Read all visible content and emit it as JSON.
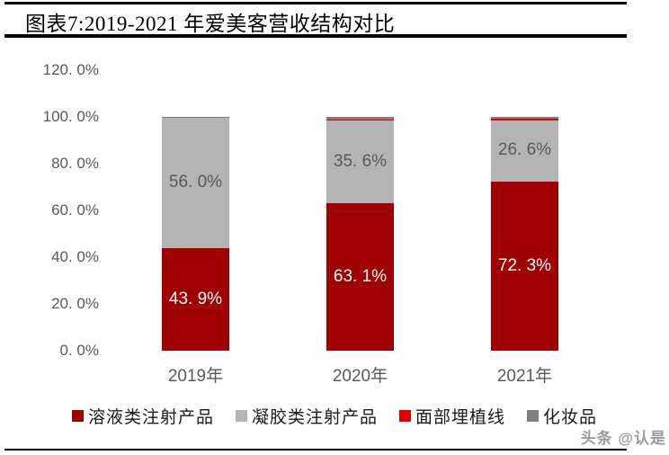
{
  "title": "图表7:2019-2021 年爱美客营收结构对比",
  "watermark": "头条 @认是",
  "colors": {
    "solution_red": "#A00000",
    "gel_gray": "#B4B4B4",
    "thread_red": "#E00000",
    "cosmetics_gray": "#7F7F7F",
    "axis_text": "#595959",
    "rule_black": "#000000"
  },
  "chart_data": {
    "type": "bar",
    "stacked": true,
    "title": "图表7:2019-2021 年爱美客营收结构对比",
    "categories": [
      "2019年",
      "2020年",
      "2021年"
    ],
    "series": [
      {
        "name": "溶液类注射产品",
        "color": "#A00000",
        "values": [
          43.9,
          63.1,
          72.3
        ],
        "labels": [
          "43. 9%",
          "63. 1%",
          "72. 3%"
        ],
        "label_color": "#FFFFFF"
      },
      {
        "name": "凝胶类注射产品",
        "color": "#B4B4B4",
        "values": [
          56.0,
          35.6,
          26.6
        ],
        "labels": [
          "56. 0%",
          "35. 6%",
          "26. 6%"
        ],
        "label_color": "#595959"
      },
      {
        "name": "面部埋植线",
        "color": "#E00000",
        "values": [
          0.0,
          0.1,
          0.4
        ],
        "labels": [
          "",
          "",
          ""
        ],
        "label_color": ""
      },
      {
        "name": "化妆品",
        "color": "#7F7F7F",
        "values": [
          0.1,
          1.2,
          0.7
        ],
        "labels": [
          "",
          "",
          ""
        ],
        "label_color": ""
      }
    ],
    "y_axis": {
      "tick_labels": [
        "0. 0%",
        "20. 0%",
        "40. 0%",
        "60. 0%",
        "80. 0%",
        "100. 0%",
        "120. 0%"
      ],
      "min": 0,
      "max": 120,
      "step": 20,
      "grid": false
    },
    "legend_position": "bottom",
    "legend": [
      "溶液类注射产品",
      "凝胶类注射产品",
      "面部埋植线",
      "化妆品"
    ]
  }
}
